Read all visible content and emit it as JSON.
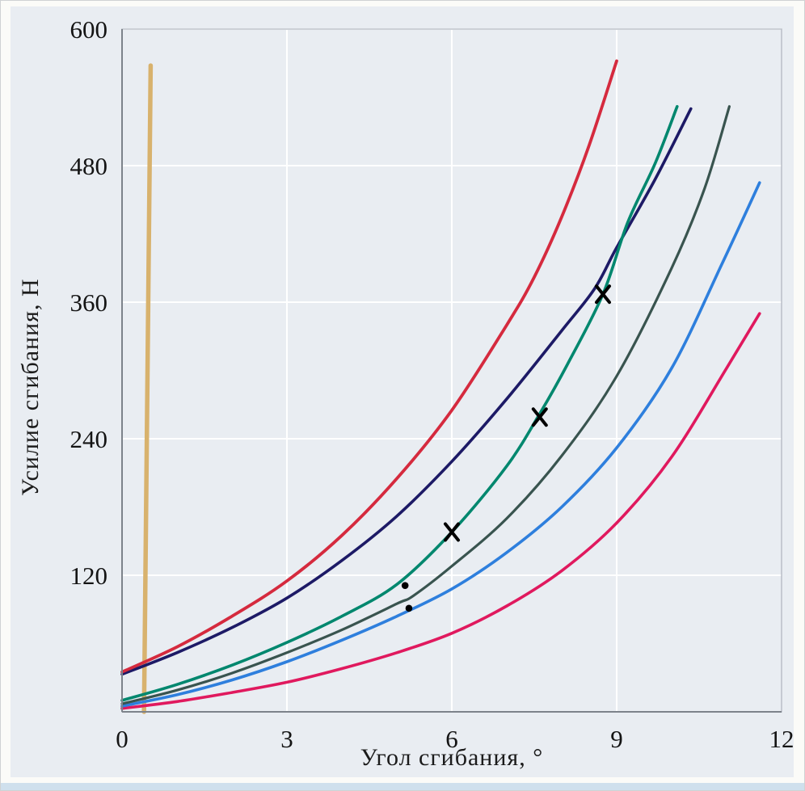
{
  "figure": {
    "background": "#fbfbf8",
    "panel_color": "#e9edf2",
    "grid_color": "#ffffff",
    "frame_color": "#b6bcc4",
    "axis_color": "#7d838b",
    "text_color": "#141414",
    "bottom_strip_color": "#cfe0ed"
  },
  "chart_data": {
    "type": "line",
    "title": "",
    "xlabel": "Угол сгибания, °",
    "ylabel": "Усилие сгибания, Н",
    "xlim": [
      0,
      12
    ],
    "ylim": [
      0,
      600
    ],
    "x_ticks": [
      0,
      3,
      6,
      9,
      12
    ],
    "y_ticks": [
      120,
      240,
      360,
      480,
      600
    ],
    "grid": true,
    "legend": "none",
    "series": [
      {
        "name": "gold-vertical-line",
        "color": "#d8b26d",
        "width": 5.5,
        "points": [
          [
            0.4,
            0
          ],
          [
            0.52,
            568
          ]
        ]
      },
      {
        "name": "crimson-curve",
        "color": "#e0195e",
        "width": 3.6,
        "points": [
          [
            0,
            3
          ],
          [
            1,
            9
          ],
          [
            2,
            17
          ],
          [
            3,
            26
          ],
          [
            4,
            38
          ],
          [
            5,
            52
          ],
          [
            6,
            69
          ],
          [
            7,
            93
          ],
          [
            8,
            124
          ],
          [
            9,
            166
          ],
          [
            10,
            224
          ],
          [
            11,
            302
          ],
          [
            11.6,
            350
          ]
        ]
      },
      {
        "name": "light-blue-curve",
        "color": "#2e7fdd",
        "width": 3.6,
        "points": [
          [
            0,
            5
          ],
          [
            1,
            15
          ],
          [
            2,
            28
          ],
          [
            3,
            44
          ],
          [
            4,
            63
          ],
          [
            5,
            84
          ],
          [
            6,
            108
          ],
          [
            7,
            140
          ],
          [
            8,
            180
          ],
          [
            9,
            232
          ],
          [
            10,
            302
          ],
          [
            10.9,
            392
          ],
          [
            11.6,
            465
          ]
        ]
      },
      {
        "name": "dark-slate-curve",
        "color": "#39544f",
        "width": 3.2,
        "points": [
          [
            0,
            7
          ],
          [
            1,
            19
          ],
          [
            2,
            34
          ],
          [
            3,
            52
          ],
          [
            4,
            72
          ],
          [
            5,
            95
          ],
          [
            5.3,
            102
          ],
          [
            6,
            128
          ],
          [
            7,
            170
          ],
          [
            8,
            225
          ],
          [
            9,
            295
          ],
          [
            10,
            390
          ],
          [
            10.6,
            460
          ],
          [
            11.05,
            532
          ]
        ]
      },
      {
        "name": "navy-curve",
        "color": "#1d1a66",
        "width": 3.6,
        "points": [
          [
            0,
            33
          ],
          [
            1,
            52
          ],
          [
            2,
            74
          ],
          [
            3,
            100
          ],
          [
            4,
            133
          ],
          [
            5,
            172
          ],
          [
            6,
            220
          ],
          [
            7,
            275
          ],
          [
            8,
            335
          ],
          [
            8.6,
            372
          ],
          [
            9,
            408
          ],
          [
            9.7,
            468
          ],
          [
            10.35,
            530
          ]
        ]
      },
      {
        "name": "teal-curve",
        "color": "#00876e",
        "width": 3.6,
        "points": [
          [
            0,
            10
          ],
          [
            1,
            24
          ],
          [
            2,
            41
          ],
          [
            3,
            61
          ],
          [
            4,
            84
          ],
          [
            5,
            112
          ],
          [
            6,
            158
          ],
          [
            7,
            216
          ],
          [
            7.6,
            262
          ],
          [
            8.1,
            305
          ],
          [
            8.75,
            367
          ],
          [
            9.2,
            430
          ],
          [
            9.7,
            482
          ],
          [
            10.1,
            532
          ]
        ]
      },
      {
        "name": "red-curve",
        "color": "#d52a3e",
        "width": 3.8,
        "points": [
          [
            0,
            35
          ],
          [
            1,
            57
          ],
          [
            2,
            84
          ],
          [
            3,
            115
          ],
          [
            4,
            155
          ],
          [
            5,
            205
          ],
          [
            6,
            265
          ],
          [
            7,
            340
          ],
          [
            7.5,
            382
          ],
          [
            8,
            435
          ],
          [
            8.5,
            498
          ],
          [
            9,
            572
          ]
        ]
      }
    ],
    "markers": [
      {
        "type": "cross",
        "color": "#000000",
        "points": [
          [
            6,
            158
          ],
          [
            7.6,
            259
          ],
          [
            8.75,
            367
          ]
        ]
      },
      {
        "type": "dot",
        "color": "#000000",
        "points": [
          [
            5.15,
            111
          ],
          [
            5.22,
            91
          ]
        ]
      }
    ]
  }
}
